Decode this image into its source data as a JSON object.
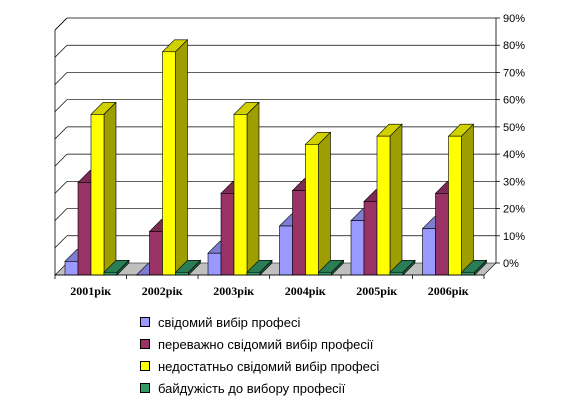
{
  "chart_data": {
    "type": "bar",
    "categories": [
      "2001рік",
      "2002рік",
      "2003рік",
      "2004рік",
      "2005рік",
      "2006рік"
    ],
    "series": [
      {
        "name": "свідомий вибір професі",
        "color": "#9999ff",
        "values": [
          5,
          0,
          8,
          18,
          20,
          17
        ]
      },
      {
        "name": "переважно свідомий вибір професії",
        "color": "#993366",
        "values": [
          34,
          16,
          30,
          31,
          27,
          30
        ]
      },
      {
        "name": "недостатньо свідомий вибір професі",
        "color": "#ffff00",
        "values": [
          59,
          82,
          59,
          48,
          51,
          51
        ]
      },
      {
        "name": "байдужість до вибору професії",
        "color": "#339966",
        "values": [
          1,
          1,
          1,
          1,
          1,
          1
        ]
      }
    ],
    "yticks": [
      "0%",
      "10%",
      "20%",
      "30%",
      "40%",
      "50%",
      "60%",
      "70%",
      "80%",
      "90%"
    ],
    "ylim": [
      0,
      90
    ],
    "grid": true,
    "legend_position": "bottom",
    "title": "",
    "xlabel": "",
    "ylabel": ""
  }
}
